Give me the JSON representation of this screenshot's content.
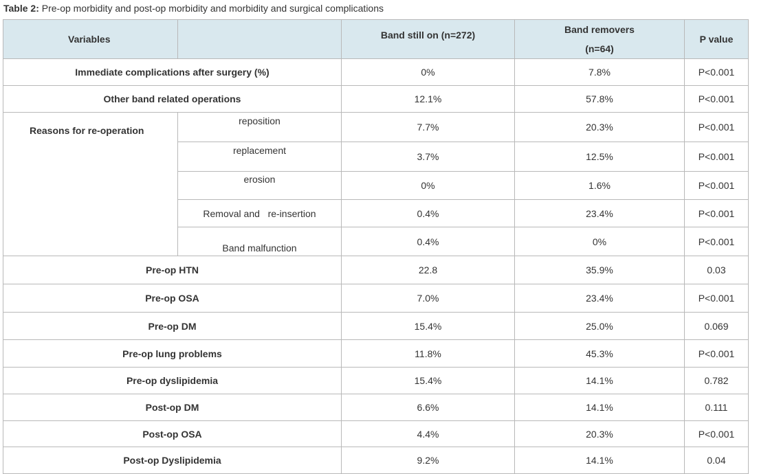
{
  "caption": {
    "label": "Table 2:",
    "text": "Pre-op morbidity and post-op morbidity and morbidity and surgical complications"
  },
  "headers": {
    "variables": "Variables",
    "band_still_on": "Band still on (n=272)",
    "band_removers_line1": "Band removers",
    "band_removers_line2": "(n=64)",
    "p_value": "P value"
  },
  "rows": [
    {
      "label": "Immediate complications after surgery (%)",
      "still_on": "0%",
      "removers": "7.8%",
      "p": "P<0.001"
    },
    {
      "label": "Other band related operations",
      "still_on": "12.1%",
      "removers": "57.8%",
      "p": "P<0.001"
    }
  ],
  "reasons": {
    "label": "Reasons for re-operation",
    "items": [
      {
        "label": "reposition",
        "still_on": "7.7%",
        "removers": "20.3%",
        "p": "P<0.001"
      },
      {
        "label": "replacement",
        "still_on": "3.7%",
        "removers": "12.5%",
        "p": "P<0.001"
      },
      {
        "label": "erosion",
        "still_on": "0%",
        "removers": "1.6%",
        "p": "P<0.001"
      },
      {
        "label": "Removal and   re-insertion",
        "still_on": "0.4%",
        "removers": "23.4%",
        "p": "P<0.001"
      },
      {
        "label": "Band malfunction",
        "still_on": "0.4%",
        "removers": "0%",
        "p": "P<0.001"
      }
    ]
  },
  "morbidity": [
    {
      "label": "Pre-op HTN",
      "still_on": "22.8",
      "removers": "35.9%",
      "p": "0.03"
    },
    {
      "label": "Pre-op OSA",
      "still_on": "7.0%",
      "removers": "23.4%",
      "p": "P<0.001"
    },
    {
      "label": "Pre-op DM",
      "still_on": "15.4%",
      "removers": "25.0%",
      "p": "0.069"
    },
    {
      "label": "Pre-op lung problems",
      "still_on": "11.8%",
      "removers": "45.3%",
      "p": "P<0.001"
    },
    {
      "label": "Pre-op dyslipidemia",
      "still_on": "15.4%",
      "removers": "14.1%",
      "p": "0.782"
    },
    {
      "label": "Post-op DM",
      "still_on": "6.6%",
      "removers": "14.1%",
      "p": "0.111"
    },
    {
      "label": "Post-op OSA",
      "still_on": "4.4%",
      "removers": "20.3%",
      "p": "P<0.001"
    },
    {
      "label": "Post-op Dyslipidemia",
      "still_on": "9.2%",
      "removers": "14.1%",
      "p": "0.04"
    }
  ]
}
